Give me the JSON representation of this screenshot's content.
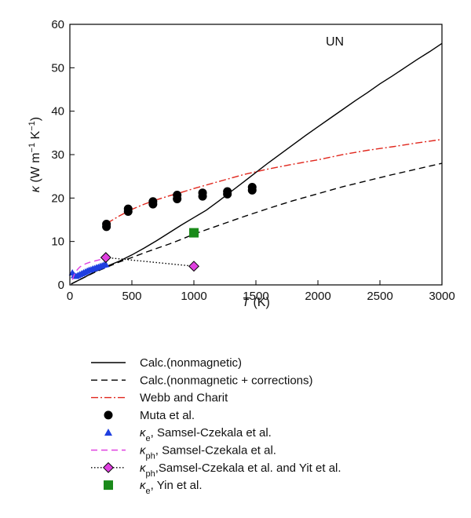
{
  "chart_data": {
    "type": "line",
    "title": "",
    "annotation": "UN",
    "xlabel": {
      "symbol": "T",
      "unit": "(K)"
    },
    "ylabel": {
      "symbol": "κ",
      "unit_a": "(W m",
      "sup_a": "−1",
      "unit_b": " K",
      "sup_b": "−1",
      "unit_c": ")"
    },
    "xlim": [
      0,
      3000
    ],
    "ylim": [
      0,
      60
    ],
    "xticks": [
      0,
      500,
      1000,
      1500,
      2000,
      2500,
      3000
    ],
    "yticks": [
      0,
      10,
      20,
      30,
      40,
      50,
      60
    ],
    "grid": false,
    "legend_position": "below",
    "series": [
      {
        "name": "Calc.(nonmagnetic)",
        "style": "solid",
        "color": "#000000",
        "marker": "none",
        "x": [
          10,
          100,
          200,
          300,
          400,
          500,
          600,
          700,
          800,
          900,
          1000,
          1100,
          1200,
          1300,
          1400,
          1500,
          1600,
          1700,
          1800,
          1900,
          2000,
          2100,
          2200,
          2300,
          2400,
          2500,
          2600,
          2700,
          2800,
          2900,
          3000
        ],
        "y": [
          0.2,
          1.5,
          3.0,
          4.3,
          5.5,
          6.9,
          8.5,
          10.2,
          12.0,
          13.8,
          15.5,
          17.2,
          19.3,
          21.5,
          23.7,
          25.9,
          28.1,
          30.2,
          32.3,
          34.4,
          36.4,
          38.4,
          40.4,
          42.4,
          44.3,
          46.3,
          48.1,
          50.0,
          51.9,
          53.7,
          55.6
        ]
      },
      {
        "name": "Calc.(nonmagnetic + corrections)",
        "style": "dashed",
        "color": "#000000",
        "marker": "none",
        "x": [
          10,
          100,
          200,
          300,
          400,
          500,
          600,
          700,
          800,
          900,
          1000,
          1200,
          1400,
          1600,
          1800,
          2000,
          2200,
          2400,
          2600,
          2800,
          3000
        ],
        "y": [
          0.2,
          1.5,
          2.9,
          4.1,
          5.3,
          6.3,
          7.4,
          8.4,
          9.4,
          10.5,
          11.7,
          13.7,
          15.7,
          17.6,
          19.4,
          21.0,
          22.6,
          24.0,
          25.4,
          26.7,
          28.0
        ]
      },
      {
        "name": "Webb and Charit",
        "style": "dashdot",
        "color": "#e0261c",
        "marker": "none",
        "x": [
          300,
          400,
          500,
          600,
          700,
          800,
          900,
          1000,
          1200,
          1400,
          1600,
          1800,
          2000,
          2200,
          2400,
          2600,
          2800,
          3000
        ],
        "y": [
          14.2,
          15.9,
          17.4,
          18.6,
          19.6,
          20.5,
          21.3,
          22.2,
          23.8,
          25.4,
          26.7,
          27.8,
          28.8,
          30.0,
          31.0,
          31.8,
          32.7,
          33.5
        ]
      },
      {
        "name": "Muta et al.",
        "style": "none",
        "color": "#000000",
        "marker": "circle",
        "x": [
          295,
          295,
          470,
          470,
          670,
          670,
          865,
          865,
          1070,
          1070,
          1270,
          1270,
          1470,
          1470
        ],
        "y": [
          13.4,
          14.0,
          16.9,
          17.5,
          18.6,
          19.2,
          19.8,
          20.7,
          20.4,
          21.2,
          20.9,
          21.5,
          21.8,
          22.5
        ]
      },
      {
        "name": "Samsel-Czekala et al.",
        "legend_symbol": "κ",
        "legend_sub": "e",
        "style": "none",
        "color": "#1f3fe0",
        "marker": "triangle",
        "x": [
          20,
          35,
          50,
          65,
          80,
          95,
          110,
          125,
          140,
          155,
          170,
          185,
          200,
          215,
          230,
          245,
          260,
          275,
          290
        ],
        "y": [
          2.8,
          2.2,
          2.0,
          2.2,
          2.4,
          2.6,
          2.8,
          3.0,
          3.2,
          3.4,
          3.5,
          3.7,
          3.8,
          4.0,
          4.1,
          4.3,
          4.4,
          4.6,
          4.7
        ]
      },
      {
        "name": "Samsel-Czekala et al.",
        "legend_symbol": "κ",
        "legend_sub": "ph",
        "style": "dashed",
        "color": "#e040e0",
        "marker": "none",
        "x": [
          20,
          40,
          60,
          80,
          100,
          130,
          160,
          200,
          240,
          290
        ],
        "y": [
          1.2,
          2.7,
          3.5,
          4.1,
          4.5,
          4.9,
          5.2,
          5.5,
          5.8,
          6.1
        ]
      },
      {
        "name": "Samsel-Czekala et al. and Yit et al.",
        "legend_symbol": "κ",
        "legend_sub": "ph",
        "style": "dotted",
        "color": "#000000",
        "marker": "diamond",
        "marker_color": "#e040e0",
        "x": [
          290,
          1000
        ],
        "y": [
          6.3,
          4.3
        ]
      },
      {
        "name": "Yin et al.",
        "legend_symbol": "κ",
        "legend_sub": "e",
        "style": "none",
        "color": "#1a8a1a",
        "marker": "square",
        "x": [
          1000
        ],
        "y": [
          12.0
        ]
      }
    ],
    "legend_entries": [
      {
        "series_index": 0,
        "text": "Calc.(nonmagnetic)"
      },
      {
        "series_index": 1,
        "text": "Calc.(nonmagnetic + corrections)"
      },
      {
        "series_index": 2,
        "text": "Webb and Charit"
      },
      {
        "series_index": 3,
        "text": "Muta et al."
      },
      {
        "series_index": 4,
        "symbol": "κ",
        "sub": "e",
        "text": ", Samsel-Czekala et al."
      },
      {
        "series_index": 5,
        "symbol": "κ",
        "sub": "ph",
        "text": ", Samsel-Czekala et al."
      },
      {
        "series_index": 6,
        "symbol": "κ",
        "sub": "ph",
        "text": ",Samsel-Czekala et al. and Yit et al."
      },
      {
        "series_index": 7,
        "symbol": "κ",
        "sub": "e",
        "text": ", Yin et al."
      }
    ]
  }
}
